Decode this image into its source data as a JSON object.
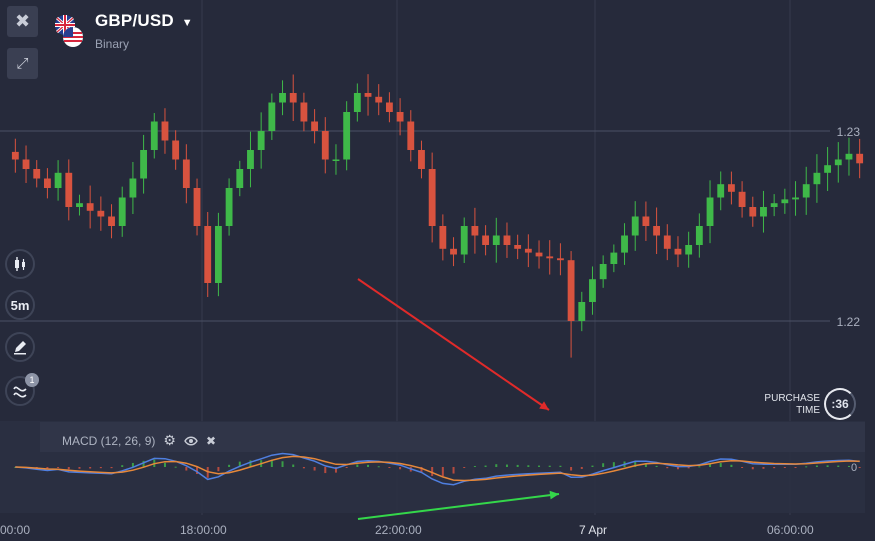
{
  "header": {
    "pair": "GBP/USD",
    "type": "Binary",
    "dropdown_icon": "caret-down-icon",
    "flag_icon": "gb-us-flag-icon"
  },
  "toolbar": {
    "close_icon": "close-icon",
    "collapse_icon": "collapse-arrows-icon",
    "chart_type_icon": "candlestick-icon",
    "timeframe": "5m",
    "draw_icon": "pencil-icon",
    "indicators_icon": "indicator-wave-icon",
    "indicators_count": "1"
  },
  "price_axis": {
    "labels": [
      "1.23",
      "1.22"
    ]
  },
  "time_axis": {
    "labels": [
      "00:00",
      "18:00:00",
      "22:00:00",
      "7 Apr",
      "06:00:00"
    ]
  },
  "macd": {
    "label": "MACD (12, 26, 9)",
    "settings_icon": "gear-icon",
    "visibility_icon": "eye-icon",
    "remove_icon": "close-icon",
    "zero_label": "0"
  },
  "purchase": {
    "label_line1": "PURCHASE",
    "label_line2": "TIME",
    "countdown": ":36"
  },
  "colors": {
    "background": "#262a3b",
    "up_candle": "#3fb949",
    "down_candle": "#d8533f",
    "macd_line": "#4f7fe0",
    "signal_line": "#e6883a",
    "bearish_arrow": "#e02a2a",
    "bullish_arrow": "#34d74a"
  },
  "chart_data": {
    "type": "candlestick",
    "title": "GBP/USD",
    "yticks": [
      1.23,
      1.22
    ],
    "xticks": [
      "00:00",
      "18:00:00",
      "22:00:00",
      "7 Apr",
      "06:00:00"
    ],
    "price_series": [
      1.2285,
      1.228,
      1.2275,
      1.227,
      1.2278,
      1.226,
      1.2262,
      1.2258,
      1.2255,
      1.225,
      1.2265,
      1.2275,
      1.229,
      1.2305,
      1.2295,
      1.2285,
      1.227,
      1.225,
      1.222,
      1.225,
      1.227,
      1.228,
      1.229,
      1.23,
      1.2315,
      1.232,
      1.2315,
      1.2305,
      1.23,
      1.2285,
      1.2285,
      1.231,
      1.232,
      1.2318,
      1.2315,
      1.231,
      1.2305,
      1.229,
      1.228,
      1.225,
      1.2238,
      1.2235,
      1.225,
      1.2245,
      1.224,
      1.2245,
      1.224,
      1.2238,
      1.2236,
      1.2234,
      1.2233,
      1.2232,
      1.22,
      1.221,
      1.2222,
      1.223,
      1.2236,
      1.2245,
      1.2255,
      1.225,
      1.2245,
      1.2238,
      1.2235,
      1.224,
      1.225,
      1.2265,
      1.2272,
      1.2268,
      1.226,
      1.2255,
      1.226,
      1.2262,
      1.2264,
      1.2265,
      1.2272,
      1.2278,
      1.2282,
      1.2285,
      1.2288,
      1.2283
    ],
    "annotations": [
      {
        "type": "arrow",
        "color": "bearish",
        "panel": "price"
      },
      {
        "type": "arrow",
        "color": "bullish",
        "panel": "macd"
      }
    ]
  }
}
